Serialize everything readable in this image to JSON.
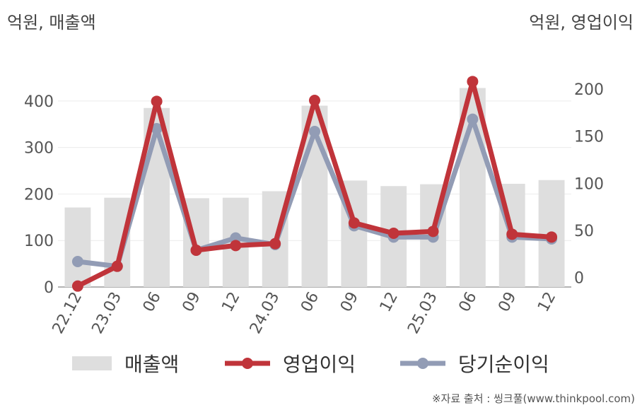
{
  "units": {
    "left": "억원, 매출액",
    "right": "억원, 영업이익"
  },
  "source": "※자료 출처 : 씽크풀(www.thinkpool.com)",
  "colors": {
    "revenue": "#dedede",
    "operating": "#c0343a",
    "net": "#929cb5"
  },
  "chart_data": {
    "type": "bar",
    "categories": [
      "22.12",
      "23.03",
      "06",
      "09",
      "12",
      "24.03",
      "06",
      "09",
      "12",
      "25.03",
      "06",
      "09",
      "12"
    ],
    "left_axis": {
      "ylim": [
        0,
        450
      ],
      "ticks": [
        0,
        100,
        200,
        300,
        400
      ]
    },
    "right_axis": {
      "ylim": [
        -10,
        212
      ],
      "ticks": [
        0,
        50,
        100,
        150,
        200
      ]
    },
    "series": [
      {
        "name": "매출액",
        "kind": "bar",
        "axis": "left",
        "values": [
          171,
          192,
          385,
          191,
          192,
          206,
          390,
          229,
          217,
          221,
          428,
          222,
          230
        ]
      },
      {
        "name": "영업이익",
        "kind": "line",
        "axis": "right",
        "values": [
          -9,
          12,
          187,
          29,
          34,
          36,
          188,
          58,
          47,
          49,
          208,
          46,
          43
        ]
      },
      {
        "name": "당기순이익",
        "kind": "line",
        "axis": "right",
        "values": [
          17,
          12,
          158,
          29,
          42,
          35,
          155,
          55,
          43,
          43,
          168,
          43,
          41
        ]
      }
    ]
  }
}
